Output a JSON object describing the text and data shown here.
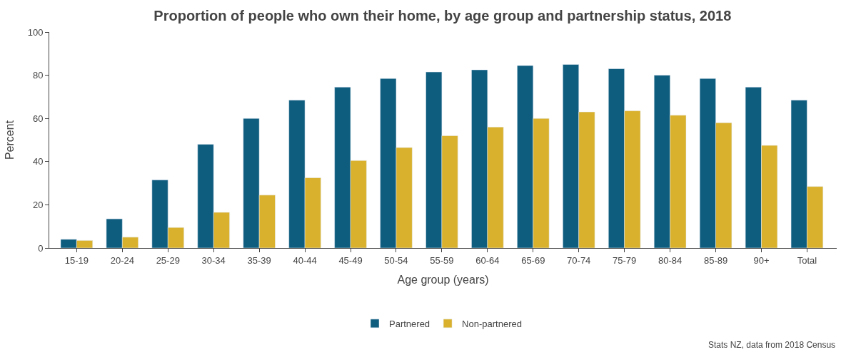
{
  "chart_data": {
    "type": "bar",
    "title": "Proportion of people who own their home, by age group and partnership status, 2018",
    "xlabel": "Age group (years)",
    "ylabel": "Percent",
    "categories": [
      "15-19",
      "20-24",
      "25-29",
      "30-34",
      "35-39",
      "40-44",
      "45-49",
      "50-54",
      "55-59",
      "60-64",
      "65-69",
      "70-74",
      "75-79",
      "80-84",
      "85-89",
      "90+",
      "Total"
    ],
    "series": [
      {
        "name": "Partnered",
        "color": "#0e5c7e",
        "values": [
          4,
          13.5,
          31.5,
          48,
          60,
          68.5,
          74.5,
          78.5,
          81.5,
          82.5,
          84.5,
          85,
          83,
          80,
          78.5,
          74.5,
          68.5
        ]
      },
      {
        "name": "Non-partnered",
        "color": "#d9b12c",
        "values": [
          3.5,
          5,
          9.5,
          16.5,
          24.5,
          32.5,
          40.5,
          46.5,
          52,
          56,
          60,
          63,
          63.5,
          61.5,
          58,
          47.5,
          28.5
        ]
      }
    ],
    "ylim": [
      0,
      100
    ],
    "yticks": [
      0,
      20,
      40,
      60,
      80,
      100
    ],
    "legend": "bottom",
    "annotations": [
      "Stats NZ, data from 2018 Census"
    ]
  }
}
